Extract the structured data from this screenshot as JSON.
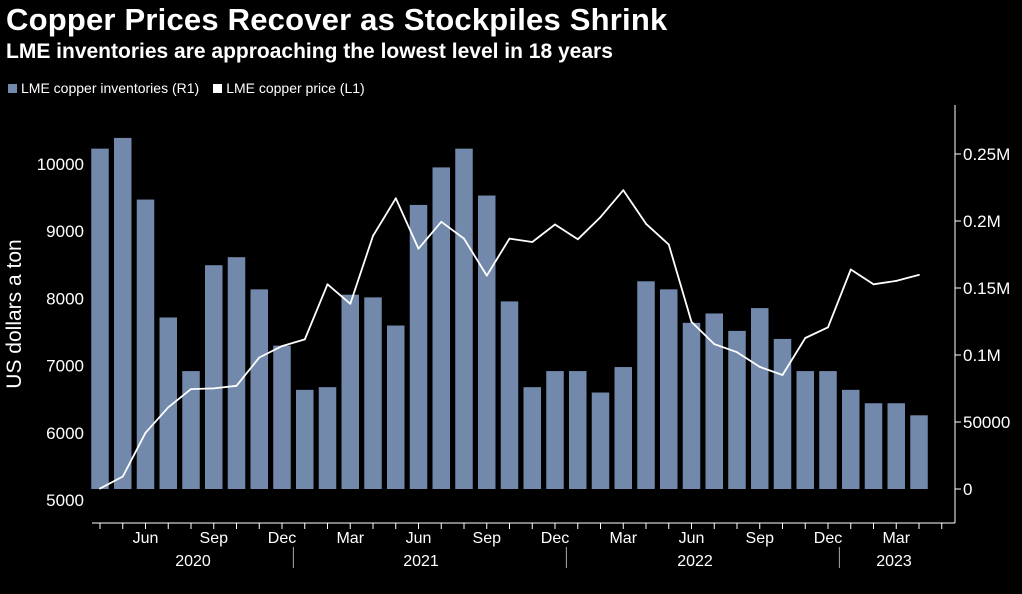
{
  "title": "Copper Prices Recover as Stockpiles Shrink",
  "subtitle": "LME inventories are approaching the lowest level in 18 years",
  "colors": {
    "background": "#000000",
    "bars": "#7289ac",
    "line": "#ffffff",
    "text": "#ffffff"
  },
  "chart_data": {
    "type": "bar+line",
    "ylabel_left": "US dollars a ton",
    "ylim_left": [
      4900,
      11000
    ],
    "yticks_left": [
      "5000",
      "6000",
      "7000",
      "8000",
      "9000",
      "10000"
    ],
    "ylim_right": [
      -12000,
      285000
    ],
    "yticks_right": [
      "0",
      "50000",
      "0.1M",
      "0.15M",
      "0.2M",
      "0.25M"
    ],
    "x_month_labels": [
      "Jun",
      "Sep",
      "Dec",
      "Mar",
      "Jun",
      "Sep",
      "Dec",
      "Mar",
      "Jun",
      "Sep",
      "Dec",
      "Mar"
    ],
    "x_year_labels": [
      "2020",
      "2021",
      "2022",
      "2023"
    ],
    "series": [
      {
        "name": "LME copper inventories (R1)",
        "axis": "right",
        "kind": "bar",
        "x": [
          "2020-04",
          "2020-05",
          "2020-06",
          "2020-07",
          "2020-08",
          "2020-09",
          "2020-10",
          "2020-11",
          "2020-12",
          "2021-01",
          "2021-02",
          "2021-03",
          "2021-04",
          "2021-05",
          "2021-06",
          "2021-07",
          "2021-08",
          "2021-09",
          "2021-10",
          "2021-11",
          "2021-12",
          "2022-01",
          "2022-02",
          "2022-03",
          "2022-04",
          "2022-05",
          "2022-06",
          "2022-07",
          "2022-08",
          "2022-09",
          "2022-10",
          "2022-11",
          "2022-12",
          "2023-01",
          "2023-02",
          "2023-03",
          "2023-04"
        ],
        "values": [
          254000,
          262000,
          216000,
          128000,
          88000,
          167000,
          173000,
          149000,
          107000,
          74000,
          76000,
          145000,
          143000,
          122000,
          212000,
          240000,
          254000,
          219000,
          140000,
          76000,
          88000,
          88000,
          72000,
          91000,
          155000,
          149000,
          124000,
          131000,
          118000,
          135000,
          112000,
          88000,
          88000,
          74000,
          64000,
          64000,
          55000
        ]
      },
      {
        "name": "LME copper price (L1)",
        "axis": "left",
        "kind": "line",
        "x": [
          "2020-04",
          "2020-05",
          "2020-06",
          "2020-07",
          "2020-08",
          "2020-09",
          "2020-10",
          "2020-11",
          "2020-12",
          "2021-01",
          "2021-02",
          "2021-03",
          "2021-04",
          "2021-05",
          "2021-06",
          "2021-07",
          "2021-08",
          "2021-09",
          "2021-10",
          "2021-11",
          "2021-12",
          "2022-01",
          "2022-02",
          "2022-03",
          "2022-04",
          "2022-05",
          "2022-06",
          "2022-07",
          "2022-08",
          "2022-09",
          "2022-10",
          "2022-11",
          "2022-12",
          "2023-01",
          "2023-02",
          "2023-03",
          "2023-04"
        ],
        "values": [
          5170,
          5350,
          6000,
          6380,
          6650,
          6660,
          6700,
          7120,
          7290,
          7390,
          8210,
          7920,
          8930,
          9490,
          8740,
          9140,
          8890,
          8340,
          8890,
          8840,
          9100,
          8880,
          9210,
          9610,
          9110,
          8800,
          7650,
          7320,
          7200,
          6980,
          6860,
          7410,
          7570,
          8430,
          8210,
          8260,
          8350
        ]
      }
    ]
  }
}
